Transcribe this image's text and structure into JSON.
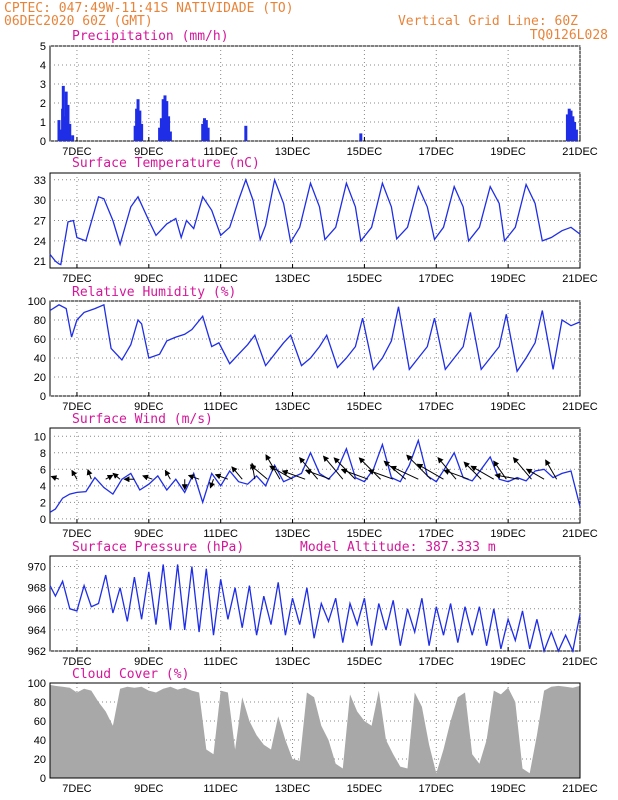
{
  "header": {
    "station": "CPTEC:   047:49W-11:41S   NATIVIDADE (TO)",
    "date": "06DEC2020 60Z (GMT)",
    "grid_note": "Vertical Grid Line: 60Z",
    "model": "TQ0126L028"
  },
  "colors": {
    "header": "#e8843a",
    "titles": "#d4179a",
    "series": "#1f2ee6",
    "cloud": "#a8a8a8",
    "grid": "#888888"
  },
  "time_axis": {
    "unit": "days since 06DEC 00Z",
    "range": [
      6.25,
      21.0
    ],
    "tick_labels": [
      "7DEC",
      "9DEC",
      "11DEC",
      "13DEC",
      "15DEC",
      "17DEC",
      "19DEC",
      "21DEC"
    ],
    "tick_positions": [
      7,
      9,
      11,
      13,
      15,
      17,
      19,
      21
    ],
    "grid": true
  },
  "chart_data": [
    {
      "id": "precipitation",
      "type": "bar",
      "title": "Precipitation (mm/h)",
      "ylim": [
        0,
        5
      ],
      "yticks": [
        "0",
        "1",
        "2",
        "3",
        "4",
        "5"
      ],
      "x": [
        6.5,
        6.55,
        6.6,
        6.62,
        6.66,
        6.7,
        6.75,
        6.8,
        6.88,
        8.62,
        8.66,
        8.7,
        8.75,
        8.8,
        9.3,
        9.35,
        9.4,
        9.45,
        9.5,
        9.55,
        9.6,
        10.5,
        10.55,
        10.6,
        10.65,
        11.7,
        14.9,
        20.65,
        20.7,
        20.75,
        20.8,
        20.85,
        20.9
      ],
      "values": [
        1.1,
        0.6,
        1.7,
        2.9,
        1.3,
        2.6,
        1.9,
        0.9,
        0.3,
        0.8,
        1.7,
        2.2,
        1.6,
        0.9,
        0.7,
        1.2,
        2.2,
        2.4,
        2.1,
        1.3,
        0.5,
        0.9,
        1.2,
        1.1,
        0.7,
        0.8,
        0.4,
        1.4,
        1.7,
        1.6,
        1.3,
        1.0,
        0.6
      ]
    },
    {
      "id": "temperature",
      "type": "line",
      "title": "Surface Temperature (nC)",
      "ylim": [
        20,
        34
      ],
      "yticks": [
        "21",
        "24",
        "27",
        "30",
        "33"
      ],
      "x": [
        6.25,
        6.4,
        6.5,
        6.55,
        6.75,
        6.9,
        7.0,
        7.25,
        7.6,
        7.75,
        8.0,
        8.2,
        8.5,
        8.7,
        9.0,
        9.2,
        9.5,
        9.75,
        9.9,
        10.05,
        10.25,
        10.5,
        10.75,
        11.0,
        11.25,
        11.5,
        11.7,
        11.9,
        12.1,
        12.25,
        12.5,
        12.75,
        12.95,
        13.2,
        13.5,
        13.75,
        13.9,
        14.2,
        14.5,
        14.75,
        14.9,
        15.2,
        15.5,
        15.75,
        15.9,
        16.2,
        16.5,
        16.75,
        16.95,
        17.2,
        17.5,
        17.75,
        17.9,
        18.2,
        18.5,
        18.75,
        18.9,
        19.2,
        19.5,
        19.75,
        19.95,
        20.2,
        20.5,
        20.75,
        21.0
      ],
      "values": [
        22.0,
        21.0,
        20.6,
        20.5,
        26.8,
        27.0,
        24.5,
        24.0,
        30.5,
        30.2,
        27.0,
        23.5,
        29.0,
        30.5,
        27.0,
        24.8,
        26.5,
        27.3,
        24.5,
        27.0,
        25.8,
        30.5,
        28.5,
        24.8,
        26.0,
        30.0,
        33.0,
        30.0,
        24.2,
        26.3,
        33.0,
        29.5,
        23.8,
        26.0,
        32.5,
        29.0,
        24.2,
        26.0,
        32.5,
        29.0,
        24.0,
        26.0,
        32.5,
        29.0,
        24.3,
        26.0,
        32.0,
        29.0,
        24.2,
        26.0,
        32.0,
        29.0,
        24.0,
        26.0,
        32.0,
        29.5,
        24.0,
        26.0,
        32.3,
        29.5,
        24.0,
        24.5,
        25.5,
        26.0,
        25.0
      ]
    },
    {
      "id": "humidity",
      "type": "line",
      "title": "Relative Humidity (%)",
      "ylim": [
        0,
        100
      ],
      "yticks": [
        "0",
        "20",
        "40",
        "60",
        "80",
        "100"
      ],
      "x": [
        6.25,
        6.5,
        6.7,
        6.85,
        7.0,
        7.2,
        7.5,
        7.75,
        7.95,
        8.25,
        8.5,
        8.7,
        8.8,
        9.0,
        9.3,
        9.5,
        9.75,
        10.0,
        10.2,
        10.5,
        10.75,
        10.95,
        11.25,
        11.5,
        11.75,
        11.95,
        12.25,
        12.5,
        12.75,
        12.95,
        13.25,
        13.5,
        13.75,
        13.95,
        14.25,
        14.5,
        14.75,
        14.95,
        15.25,
        15.5,
        15.75,
        15.95,
        16.25,
        16.5,
        16.75,
        16.95,
        17.25,
        17.5,
        17.75,
        17.95,
        18.25,
        18.5,
        18.75,
        18.95,
        19.25,
        19.5,
        19.75,
        19.95,
        20.25,
        20.5,
        20.75,
        21.0
      ],
      "values": [
        90,
        96,
        92,
        62,
        80,
        88,
        92,
        96,
        50,
        38,
        54,
        80,
        76,
        40,
        44,
        58,
        62,
        65,
        70,
        84,
        52,
        56,
        34,
        44,
        54,
        64,
        32,
        44,
        56,
        64,
        32,
        40,
        52,
        64,
        30,
        40,
        52,
        82,
        28,
        40,
        58,
        94,
        28,
        40,
        52,
        82,
        28,
        40,
        52,
        88,
        28,
        40,
        52,
        86,
        26,
        40,
        56,
        90,
        28,
        80,
        74,
        78
      ]
    },
    {
      "id": "wind",
      "type": "line",
      "title": "Surface Wind (m/s)",
      "ylim": [
        -0.5,
        11
      ],
      "yticks": [
        "0",
        "2",
        "4",
        "6",
        "8",
        "10"
      ],
      "x": [
        6.25,
        6.4,
        6.6,
        6.8,
        7.0,
        7.25,
        7.5,
        7.75,
        8.0,
        8.25,
        8.5,
        8.75,
        9.0,
        9.25,
        9.5,
        9.75,
        10.0,
        10.25,
        10.5,
        10.75,
        11.0,
        11.25,
        11.5,
        11.75,
        12.0,
        12.25,
        12.5,
        12.75,
        13.0,
        13.25,
        13.5,
        13.75,
        14.0,
        14.25,
        14.5,
        14.75,
        15.0,
        15.25,
        15.5,
        15.75,
        16.0,
        16.25,
        16.5,
        16.75,
        17.0,
        17.25,
        17.5,
        17.75,
        18.0,
        18.25,
        18.5,
        18.75,
        19.0,
        19.25,
        19.5,
        19.75,
        20.0,
        20.25,
        20.5,
        20.75,
        21.0
      ],
      "values": [
        0.8,
        1.2,
        2.5,
        3.0,
        3.2,
        3.3,
        5.0,
        3.8,
        3.0,
        4.8,
        5.5,
        3.5,
        4.2,
        5.2,
        3.5,
        4.8,
        3.2,
        5.5,
        2.0,
        5.5,
        4.0,
        5.8,
        4.5,
        4.2,
        5.2,
        4.0,
        6.5,
        4.5,
        5.0,
        5.5,
        8.0,
        5.5,
        4.8,
        6.0,
        8.5,
        5.0,
        4.5,
        6.0,
        9.0,
        5.0,
        4.5,
        6.5,
        9.5,
        5.2,
        4.5,
        6.2,
        8.0,
        5.0,
        4.6,
        6.0,
        7.5,
        4.8,
        4.5,
        5.0,
        4.6,
        5.8,
        6.0,
        5.0,
        5.5,
        5.8,
        1.5
      ],
      "vectors_x": [
        6.5,
        7.0,
        7.4,
        7.8,
        8.2,
        8.6,
        9.1,
        9.6,
        10.0,
        10.4,
        10.8,
        11.2,
        11.6,
        11.95,
        12.3,
        12.65,
        13.0,
        13.35,
        13.7,
        14.05,
        14.4,
        14.75,
        15.1,
        15.45,
        15.8,
        16.15,
        16.5,
        16.85,
        17.2,
        17.55,
        17.9,
        18.25,
        18.6,
        18.95,
        19.3,
        19.65,
        20.0,
        20.35
      ],
      "vectors_deg": [
        200,
        240,
        250,
        330,
        220,
        180,
        200,
        240,
        90,
        200,
        110,
        200,
        230,
        260,
        220,
        240,
        210,
        200,
        230,
        200,
        230,
        225,
        200,
        225,
        200,
        220,
        205,
        225,
        210,
        230,
        200,
        225,
        210,
        235,
        190,
        230,
        210,
        240
      ],
      "vectors_len": [
        8,
        10,
        10,
        8,
        9,
        10,
        10,
        10,
        10,
        11,
        9,
        13,
        16,
        16,
        22,
        28,
        26,
        24,
        28,
        26,
        30,
        30,
        28,
        30,
        26,
        28,
        30,
        34,
        30,
        28,
        26,
        24,
        26,
        22,
        24,
        28,
        20,
        22
      ]
    },
    {
      "id": "pressure",
      "type": "line",
      "title": "Surface Pressure (hPa)",
      "subtitle": "Model Altitude: 387.333 m",
      "ylim": [
        962,
        971
      ],
      "yticks": [
        "962",
        "964",
        "966",
        "968",
        "970"
      ],
      "x": [
        6.25,
        6.4,
        6.6,
        6.8,
        7.0,
        7.2,
        7.4,
        7.6,
        7.8,
        8.0,
        8.2,
        8.4,
        8.6,
        8.8,
        9.0,
        9.2,
        9.4,
        9.6,
        9.8,
        10.0,
        10.2,
        10.4,
        10.6,
        10.8,
        11.0,
        11.2,
        11.4,
        11.6,
        11.8,
        12.0,
        12.2,
        12.4,
        12.6,
        12.8,
        13.0,
        13.2,
        13.4,
        13.6,
        13.8,
        14.0,
        14.2,
        14.4,
        14.6,
        14.8,
        15.0,
        15.2,
        15.4,
        15.6,
        15.8,
        16.0,
        16.2,
        16.4,
        16.6,
        16.8,
        17.0,
        17.2,
        17.4,
        17.6,
        17.8,
        18.0,
        18.2,
        18.4,
        18.6,
        18.8,
        19.0,
        19.2,
        19.4,
        19.6,
        19.8,
        20.0,
        20.2,
        20.4,
        20.6,
        20.8,
        21.0
      ],
      "values": [
        968.2,
        967.2,
        968.6,
        966.0,
        965.8,
        968.2,
        966.2,
        966.5,
        969.2,
        965.6,
        968.0,
        964.8,
        969.0,
        965.0,
        969.5,
        964.5,
        970.2,
        964.0,
        970.2,
        964.0,
        970.0,
        963.8,
        969.8,
        963.5,
        968.8,
        965.0,
        968.0,
        964.2,
        968.2,
        963.5,
        967.2,
        964.5,
        968.5,
        963.5,
        967.0,
        964.5,
        968.0,
        963.2,
        966.5,
        964.8,
        967.0,
        962.8,
        966.5,
        964.5,
        967.0,
        962.5,
        966.5,
        964.0,
        966.8,
        962.5,
        966.0,
        963.8,
        967.0,
        962.5,
        966.2,
        963.5,
        966.5,
        962.8,
        966.2,
        963.5,
        966.2,
        962.5,
        966.0,
        962.2,
        965.0,
        963.0,
        965.8,
        962.2,
        965.0,
        962.0,
        963.8,
        962.0,
        963.5,
        962.0,
        965.5
      ]
    },
    {
      "id": "cloud",
      "type": "area",
      "title": "Cloud Cover (%)",
      "ylim": [
        0,
        100
      ],
      "yticks": [
        "0",
        "20",
        "40",
        "60",
        "80",
        "100"
      ],
      "x": [
        6.25,
        6.4,
        6.6,
        6.8,
        7.0,
        7.2,
        7.4,
        7.6,
        7.8,
        8.0,
        8.2,
        8.4,
        8.6,
        8.8,
        9.0,
        9.2,
        9.4,
        9.6,
        9.8,
        10.0,
        10.2,
        10.4,
        10.6,
        10.8,
        11.0,
        11.2,
        11.4,
        11.6,
        11.8,
        12.0,
        12.2,
        12.4,
        12.6,
        12.8,
        13.0,
        13.2,
        13.4,
        13.6,
        13.8,
        14.0,
        14.2,
        14.4,
        14.6,
        14.8,
        15.0,
        15.2,
        15.4,
        15.6,
        15.8,
        16.0,
        16.2,
        16.4,
        16.6,
        16.8,
        17.0,
        17.2,
        17.4,
        17.6,
        17.8,
        18.0,
        18.2,
        18.4,
        18.6,
        18.8,
        19.0,
        19.2,
        19.4,
        19.6,
        19.8,
        20.0,
        20.2,
        20.4,
        20.6,
        20.8,
        21.0
      ],
      "values": [
        98,
        97,
        96,
        95,
        90,
        94,
        92,
        80,
        70,
        55,
        94,
        96,
        95,
        96,
        92,
        90,
        94,
        96,
        93,
        95,
        92,
        90,
        30,
        25,
        92,
        90,
        30,
        85,
        60,
        45,
        35,
        30,
        65,
        40,
        20,
        18,
        90,
        85,
        55,
        40,
        15,
        10,
        88,
        70,
        60,
        55,
        92,
        40,
        25,
        12,
        10,
        90,
        75,
        35,
        5,
        30,
        60,
        85,
        90,
        25,
        15,
        40,
        92,
        88,
        95,
        80,
        10,
        5,
        45,
        92,
        96,
        97,
        96,
        95,
        97
      ]
    }
  ]
}
